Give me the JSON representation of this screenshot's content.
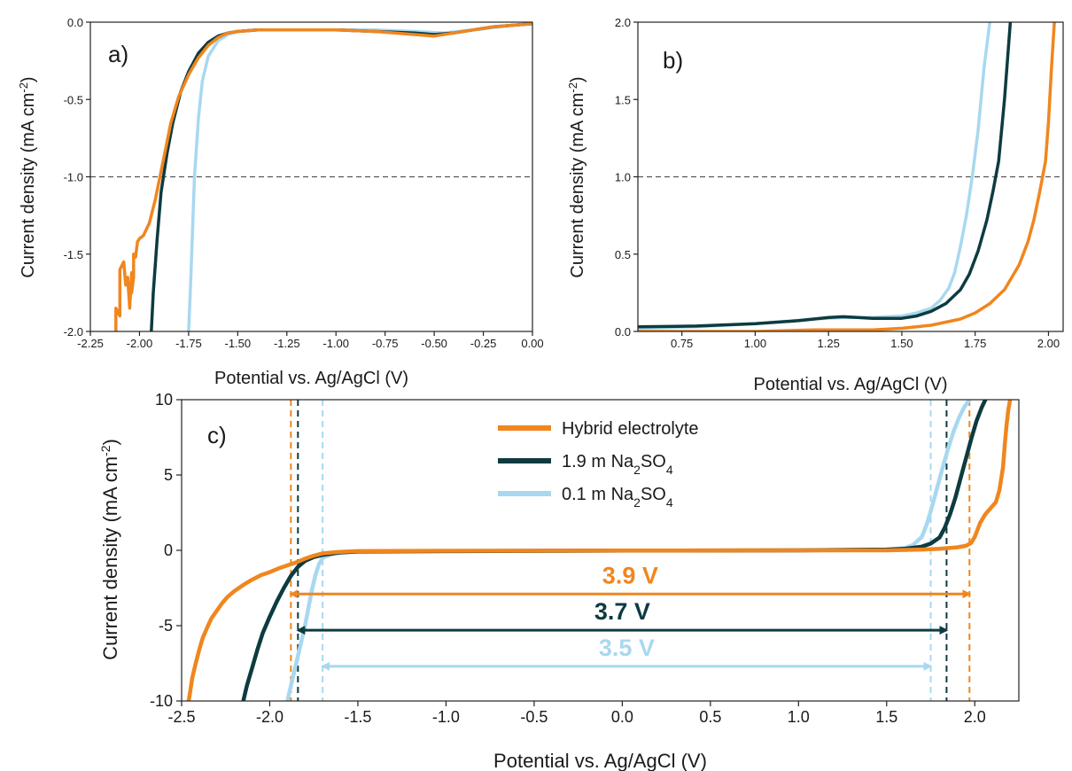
{
  "chart_data": [
    {
      "panel": "a)",
      "type": "line",
      "xlabel": "Potential vs. Ag/AgCl (V)",
      "ylabel": "Current density (mA cm",
      "ylabel_sup": "-2",
      "ylabel_end": ")",
      "xlim": [
        -2.25,
        0.0
      ],
      "ylim": [
        -2.0,
        0.0
      ],
      "xticks": [
        "-2.25",
        "-2.00",
        "-1.75",
        "-1.50",
        "-1.25",
        "-1.00",
        "-0.75",
        "-0.50",
        "-0.25",
        "0.00"
      ],
      "yticks": [
        "-2.0",
        "-1.5",
        "-1.0",
        "-0.5",
        "0.0"
      ],
      "ref_line_y": -1.0,
      "grid": false,
      "series": [
        {
          "key": "light",
          "color": "#a8d8f0",
          "x": [
            -1.75,
            -1.74,
            -1.73,
            -1.72,
            -1.7,
            -1.68,
            -1.65,
            -1.6,
            -1.55,
            -1.5,
            -1.4,
            -1.2,
            -1.0,
            -0.8,
            -0.6,
            -0.45,
            -0.3,
            -0.1,
            0.0
          ],
          "y": [
            -2.0,
            -1.7,
            -1.35,
            -1.0,
            -0.62,
            -0.38,
            -0.22,
            -0.12,
            -0.08,
            -0.06,
            -0.05,
            -0.05,
            -0.05,
            -0.05,
            -0.06,
            -0.07,
            -0.05,
            -0.02,
            -0.01
          ]
        },
        {
          "key": "dark",
          "color": "#0d3b40",
          "x": [
            -1.94,
            -1.93,
            -1.91,
            -1.89,
            -1.86,
            -1.83,
            -1.79,
            -1.75,
            -1.7,
            -1.65,
            -1.6,
            -1.55,
            -1.5,
            -1.4,
            -1.2,
            -1.0,
            -0.8,
            -0.6,
            -0.5,
            -0.4,
            -0.3,
            -0.2,
            -0.1,
            0.0
          ],
          "y": [
            -2.0,
            -1.75,
            -1.4,
            -1.1,
            -0.85,
            -0.65,
            -0.45,
            -0.32,
            -0.2,
            -0.13,
            -0.09,
            -0.07,
            -0.06,
            -0.05,
            -0.05,
            -0.05,
            -0.06,
            -0.07,
            -0.08,
            -0.07,
            -0.05,
            -0.03,
            -0.02,
            -0.01
          ]
        },
        {
          "key": "orange",
          "color": "#f0861e",
          "x": [
            -2.12,
            -2.12,
            -2.1,
            -2.1,
            -2.08,
            -2.07,
            -2.06,
            -2.05,
            -2.04,
            -2.04,
            -2.03,
            -2.03,
            -2.02,
            -2.01,
            -2.0,
            -1.98,
            -1.95,
            -1.92,
            -1.88,
            -1.84,
            -1.8,
            -1.75,
            -1.7,
            -1.65,
            -1.6,
            -1.55,
            -1.5,
            -1.4,
            -1.2,
            -1.0,
            -0.8,
            -0.6,
            -0.5,
            -0.4,
            -0.3,
            -0.2,
            -0.1,
            0.0
          ],
          "y": [
            -2.0,
            -1.85,
            -1.9,
            -1.6,
            -1.55,
            -1.7,
            -1.65,
            -1.85,
            -1.62,
            -1.75,
            -1.65,
            -1.5,
            -1.52,
            -1.42,
            -1.4,
            -1.38,
            -1.3,
            -1.15,
            -0.9,
            -0.65,
            -0.48,
            -0.34,
            -0.23,
            -0.15,
            -0.1,
            -0.07,
            -0.06,
            -0.05,
            -0.05,
            -0.05,
            -0.06,
            -0.08,
            -0.09,
            -0.07,
            -0.05,
            -0.03,
            -0.02,
            -0.01
          ]
        }
      ]
    },
    {
      "panel": "b)",
      "type": "line",
      "xlabel": "Potential vs. Ag/AgCl (V)",
      "ylabel": "Current density (mA cm",
      "ylabel_sup": "-2",
      "ylabel_end": ")",
      "xlim": [
        0.6,
        2.05
      ],
      "ylim": [
        0.0,
        2.0
      ],
      "xticks": [
        "0.75",
        "1.00",
        "1.25",
        "1.50",
        "1.75",
        "2.00"
      ],
      "yticks": [
        "0.0",
        "0.5",
        "1.0",
        "1.5",
        "2.0"
      ],
      "ref_line_y": 1.0,
      "grid": false,
      "series": [
        {
          "key": "light",
          "color": "#a8d8f0",
          "x": [
            0.6,
            0.8,
            1.0,
            1.2,
            1.3,
            1.4,
            1.5,
            1.55,
            1.6,
            1.63,
            1.66,
            1.68,
            1.7,
            1.72,
            1.74,
            1.76,
            1.78,
            1.8
          ],
          "y": [
            0.02,
            0.03,
            0.05,
            0.08,
            0.09,
            0.09,
            0.1,
            0.12,
            0.15,
            0.2,
            0.28,
            0.38,
            0.55,
            0.75,
            1.0,
            1.3,
            1.7,
            2.0
          ]
        },
        {
          "key": "dark",
          "color": "#0d3b40",
          "x": [
            0.6,
            0.8,
            1.0,
            1.15,
            1.25,
            1.3,
            1.35,
            1.4,
            1.5,
            1.55,
            1.6,
            1.65,
            1.7,
            1.73,
            1.76,
            1.79,
            1.81,
            1.83,
            1.85,
            1.87
          ],
          "y": [
            0.03,
            0.035,
            0.05,
            0.07,
            0.09,
            0.095,
            0.09,
            0.085,
            0.085,
            0.1,
            0.13,
            0.18,
            0.27,
            0.37,
            0.52,
            0.72,
            0.9,
            1.1,
            1.5,
            2.0
          ]
        },
        {
          "key": "orange",
          "color": "#f0861e",
          "x": [
            0.6,
            0.8,
            1.0,
            1.2,
            1.4,
            1.5,
            1.6,
            1.7,
            1.75,
            1.8,
            1.85,
            1.9,
            1.93,
            1.95,
            1.97,
            1.99,
            2.0,
            2.01,
            2.02
          ],
          "y": [
            0.0,
            0.0,
            0.0,
            0.01,
            0.01,
            0.02,
            0.04,
            0.08,
            0.12,
            0.18,
            0.27,
            0.43,
            0.58,
            0.72,
            0.9,
            1.1,
            1.35,
            1.7,
            2.0
          ]
        }
      ]
    },
    {
      "panel": "c)",
      "type": "line",
      "xlabel": "Potential vs. Ag/AgCl (V)",
      "ylabel": "Current density (mA cm",
      "ylabel_sup": "-2",
      "ylabel_end": ")",
      "xlim": [
        -2.5,
        2.25
      ],
      "ylim": [
        -10,
        10
      ],
      "xticks": [
        "-2.5",
        "-2.0",
        "-1.5",
        "-1.0",
        "-0.5",
        "0.0",
        "0.5",
        "1.0",
        "1.5",
        "2.0"
      ],
      "yticks": [
        "-10",
        "-5",
        "0",
        "5",
        "10"
      ],
      "grid": false,
      "legend": [
        {
          "key": "orange",
          "label": "Hybrid electrolyte",
          "sub": "",
          "after": ""
        },
        {
          "key": "dark",
          "label": "1.9 m Na",
          "sub": "2",
          "after": "SO",
          "sub2": "4"
        },
        {
          "key": "light",
          "label": "0.1 m Na",
          "sub": "2",
          "after": "SO",
          "sub2": "4"
        }
      ],
      "legend_position": "top-center",
      "windows": [
        {
          "key": "orange",
          "label": "3.9 V",
          "x_from": -1.88,
          "x_to": 1.97,
          "y": -2.9
        },
        {
          "key": "dark",
          "label": "3.7 V",
          "x_from": -1.84,
          "x_to": 1.84,
          "y": -5.3
        },
        {
          "key": "light",
          "label": "3.5 V",
          "x_from": -1.7,
          "x_to": 1.75,
          "y": -7.7
        }
      ],
      "series": [
        {
          "key": "light",
          "color": "#a8d8f0",
          "x": [
            -1.9,
            -1.88,
            -1.86,
            -1.84,
            -1.82,
            -1.8,
            -1.78,
            -1.76,
            -1.74,
            -1.72,
            -1.7,
            -1.65,
            -1.6,
            -1.5,
            -1.0,
            0.0,
            1.0,
            1.5,
            1.6,
            1.65,
            1.7,
            1.73,
            1.76,
            1.79,
            1.82,
            1.85,
            1.88,
            1.91,
            1.94,
            1.97
          ],
          "y": [
            -10,
            -9.0,
            -8.0,
            -7.0,
            -6.0,
            -5.0,
            -3.8,
            -2.6,
            -1.6,
            -0.9,
            -0.5,
            -0.25,
            -0.12,
            -0.06,
            -0.05,
            -0.03,
            -0.02,
            0.05,
            0.15,
            0.35,
            0.9,
            1.8,
            3.0,
            4.3,
            5.6,
            6.8,
            7.9,
            8.8,
            9.5,
            10
          ]
        },
        {
          "key": "dark",
          "color": "#0d3b40",
          "x": [
            -2.15,
            -2.13,
            -2.1,
            -2.07,
            -2.04,
            -2.0,
            -1.96,
            -1.92,
            -1.88,
            -1.84,
            -1.8,
            -1.75,
            -1.7,
            -1.6,
            -1.5,
            -1.0,
            0.0,
            1.0,
            1.5,
            1.6,
            1.7,
            1.75,
            1.8,
            1.83,
            1.86,
            1.89,
            1.92,
            1.95,
            1.98,
            2.01,
            2.04,
            2.06
          ],
          "y": [
            -10,
            -9.0,
            -7.8,
            -6.6,
            -5.5,
            -4.4,
            -3.4,
            -2.5,
            -1.7,
            -1.1,
            -0.7,
            -0.45,
            -0.3,
            -0.15,
            -0.08,
            -0.05,
            -0.02,
            0.0,
            0.05,
            0.1,
            0.25,
            0.45,
            0.85,
            1.5,
            2.4,
            3.5,
            4.8,
            6.1,
            7.4,
            8.6,
            9.5,
            10
          ]
        },
        {
          "key": "orange",
          "color": "#f0861e",
          "x": [
            -2.46,
            -2.45,
            -2.44,
            -2.42,
            -2.4,
            -2.38,
            -2.35,
            -2.33,
            -2.3,
            -2.27,
            -2.24,
            -2.2,
            -2.15,
            -2.1,
            -2.05,
            -2.0,
            -1.95,
            -1.9,
            -1.85,
            -1.8,
            -1.75,
            -1.7,
            -1.6,
            -1.5,
            -1.0,
            0.0,
            1.0,
            1.5,
            1.7,
            1.8,
            1.9,
            1.95,
            1.98,
            2.0,
            2.03,
            2.06,
            2.09,
            2.12,
            2.14,
            2.16,
            2.17,
            2.18,
            2.19,
            2.2
          ],
          "y": [
            -10,
            -9.3,
            -8.5,
            -7.5,
            -6.6,
            -5.8,
            -5.0,
            -4.5,
            -4.0,
            -3.5,
            -3.1,
            -2.7,
            -2.3,
            -1.95,
            -1.65,
            -1.45,
            -1.2,
            -1.0,
            -0.8,
            -0.55,
            -0.35,
            -0.2,
            -0.1,
            -0.05,
            -0.03,
            -0.02,
            0.0,
            0.0,
            0.05,
            0.1,
            0.2,
            0.3,
            0.5,
            0.9,
            1.8,
            2.4,
            2.8,
            3.2,
            4.0,
            5.5,
            7.0,
            8.3,
            9.3,
            10
          ]
        }
      ],
      "window_markers": [
        {
          "key": "orange",
          "x": [
            -1.88,
            1.97
          ]
        },
        {
          "key": "dark",
          "x": [
            -1.84,
            1.84
          ]
        },
        {
          "key": "light",
          "x": [
            -1.7,
            1.75
          ]
        }
      ]
    }
  ]
}
